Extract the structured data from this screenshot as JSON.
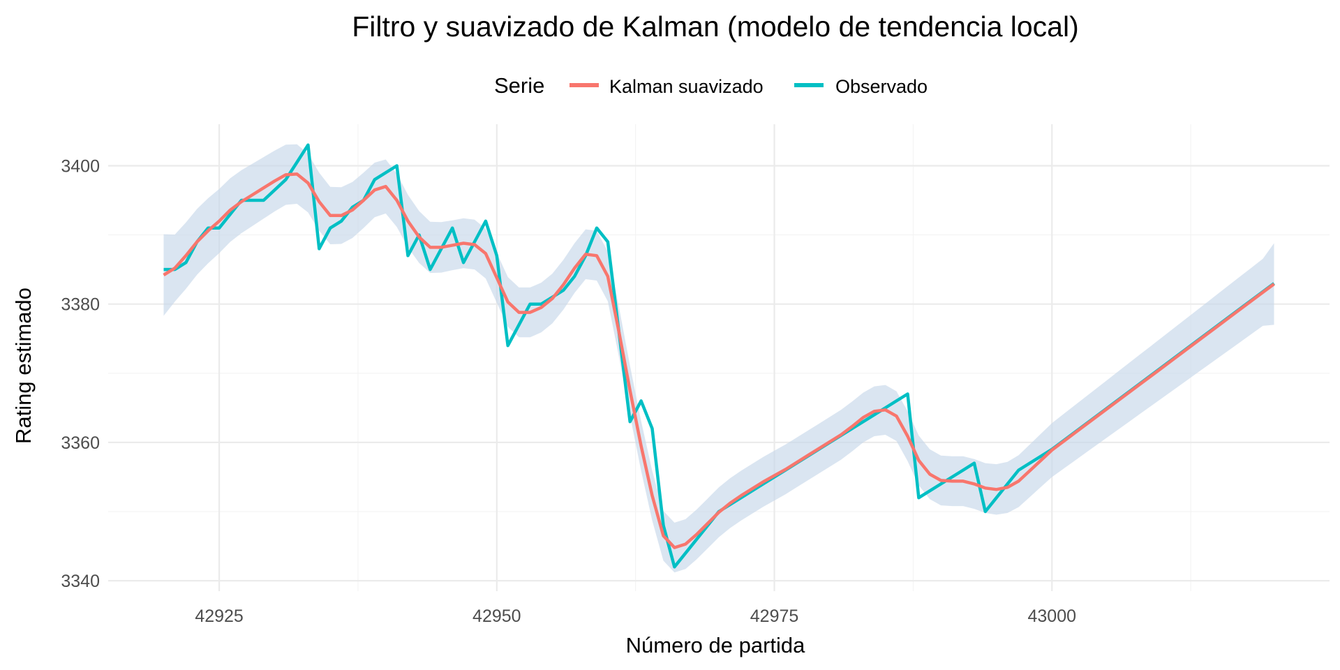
{
  "chart_data": {
    "type": "line",
    "title": "Filtro y suavizado de Kalman (modelo de tendencia local)",
    "xlabel": "Número de partida",
    "ylabel": "Rating estimado",
    "legend": {
      "title": "Serie",
      "position": "top"
    },
    "xlim": [
      42915,
      43025
    ],
    "ylim": [
      3338.5,
      3406
    ],
    "x_ticks": [
      42925,
      42950,
      42975,
      43000
    ],
    "x_tick_labels": [
      "42925",
      "42950",
      "42975",
      "43000"
    ],
    "y_ticks": [
      3340,
      3360,
      3380,
      3400
    ],
    "y_tick_labels": [
      "3340",
      "3360",
      "3380",
      "3400"
    ],
    "grid": true,
    "colors": {
      "smoothed": "#f8766d",
      "observed": "#00bfc4",
      "band": "#c6d7ea"
    },
    "series": [
      {
        "name": "Kalman suavizado",
        "color": "#f8766d",
        "x": [
          42920,
          42921,
          42922,
          42923,
          42924,
          42925,
          42926,
          42927,
          42928,
          42929,
          42930,
          42931,
          42932,
          42933,
          42934,
          42935,
          42936,
          42937,
          42938,
          42939,
          42940,
          42941,
          42942,
          42943,
          42944,
          42945,
          42946,
          42947,
          42948,
          42949,
          42950,
          42951,
          42952,
          42953,
          42954,
          42955,
          42956,
          42957,
          42958,
          42959,
          42960,
          42961,
          42962,
          42963,
          42964,
          42965,
          42966,
          42967,
          42968,
          42969,
          42970,
          42971,
          42972,
          42973,
          42974,
          42975,
          42976,
          42977,
          42978,
          42979,
          42980,
          42981,
          42982,
          42983,
          42984,
          42985,
          42986,
          42987,
          42988,
          42989,
          42990,
          42991,
          42992,
          42993,
          42994,
          42995,
          42996,
          42997,
          42998,
          42999,
          43000,
          43001,
          43002,
          43003,
          43004,
          43005,
          43006,
          43007,
          43008,
          43009,
          43010,
          43011,
          43012,
          43013,
          43014,
          43015,
          43016,
          43017,
          43018,
          43019,
          43020
        ],
        "y": [
          3384.2,
          3385.2,
          3387.0,
          3389.0,
          3390.6,
          3392.0,
          3393.6,
          3394.8,
          3395.8,
          3396.8,
          3397.8,
          3398.7,
          3398.8,
          3397.5,
          3394.8,
          3392.8,
          3392.8,
          3393.6,
          3395.0,
          3396.5,
          3397.0,
          3395.0,
          3392.0,
          3389.7,
          3388.2,
          3388.2,
          3388.5,
          3388.8,
          3388.6,
          3387.3,
          3383.8,
          3380.3,
          3378.8,
          3378.8,
          3379.5,
          3380.8,
          3382.8,
          3385.2,
          3387.2,
          3387.0,
          3384.0,
          3376.0,
          3367.5,
          3359.5,
          3352.3,
          3346.5,
          3344.8,
          3345.3,
          3346.7,
          3348.3,
          3349.9,
          3351.2,
          3352.3,
          3353.3,
          3354.3,
          3355.2,
          3356.1,
          3357.1,
          3358.1,
          3359.1,
          3360.1,
          3361.1,
          3362.3,
          3363.6,
          3364.5,
          3364.7,
          3363.8,
          3360.9,
          3357.4,
          3355.4,
          3354.5,
          3354.4,
          3354.4,
          3354.0,
          3353.4,
          3353.2,
          3353.5,
          3354.4,
          3355.9,
          3357.4,
          3358.9,
          3360.1,
          3361.3,
          3362.5,
          3363.7,
          3364.9,
          3366.1,
          3367.3,
          3368.5,
          3369.7,
          3370.9,
          3372.1,
          3373.3,
          3374.5,
          3375.7,
          3376.9,
          3378.1,
          3379.3,
          3380.5,
          3381.7,
          3382.9
        ]
      },
      {
        "name": "Observado",
        "color": "#00bfc4",
        "x": [
          42920,
          42921,
          42922,
          42923,
          42924,
          42925,
          42926,
          42927,
          42928,
          42929,
          42931,
          42932,
          42933,
          42934,
          42935,
          42936,
          42937,
          42938,
          42939,
          42940,
          42941,
          42942,
          42943,
          42944,
          42945,
          42946,
          42947,
          42948,
          42949,
          42950,
          42951,
          42952,
          42953,
          42954,
          42956,
          42957,
          42958,
          42959,
          42960,
          42962,
          42963,
          42964,
          42965,
          42966,
          42968,
          42970,
          42972,
          42974,
          42976,
          42978,
          42980,
          42982,
          42984,
          42986,
          42987,
          42988,
          42990,
          42992,
          42993,
          42994,
          42995,
          42996,
          42997,
          42998,
          43000,
          43005,
          43010,
          43015,
          43020
        ],
        "y": [
          3385,
          3385,
          3386,
          3389,
          3391,
          3391,
          3393,
          3395,
          3395,
          3395,
          3398,
          3400.5,
          3403,
          3388,
          3391,
          3392,
          3394,
          3395,
          3398,
          3399,
          3400,
          3387,
          3390,
          3385,
          3388,
          3391,
          3386,
          3389,
          3392,
          3387,
          3374,
          3377,
          3380,
          3380,
          3382,
          3384,
          3387,
          3391,
          3389,
          3363,
          3366,
          3362,
          3348,
          3342,
          3346,
          3350,
          3352,
          3354,
          3356,
          3358,
          3360,
          3362,
          3364,
          3366,
          3367,
          3352,
          3354,
          3356,
          3357,
          3350,
          3352,
          3354,
          3356,
          3357,
          3359,
          3365,
          3371,
          3377,
          3383
        ]
      }
    ]
  }
}
